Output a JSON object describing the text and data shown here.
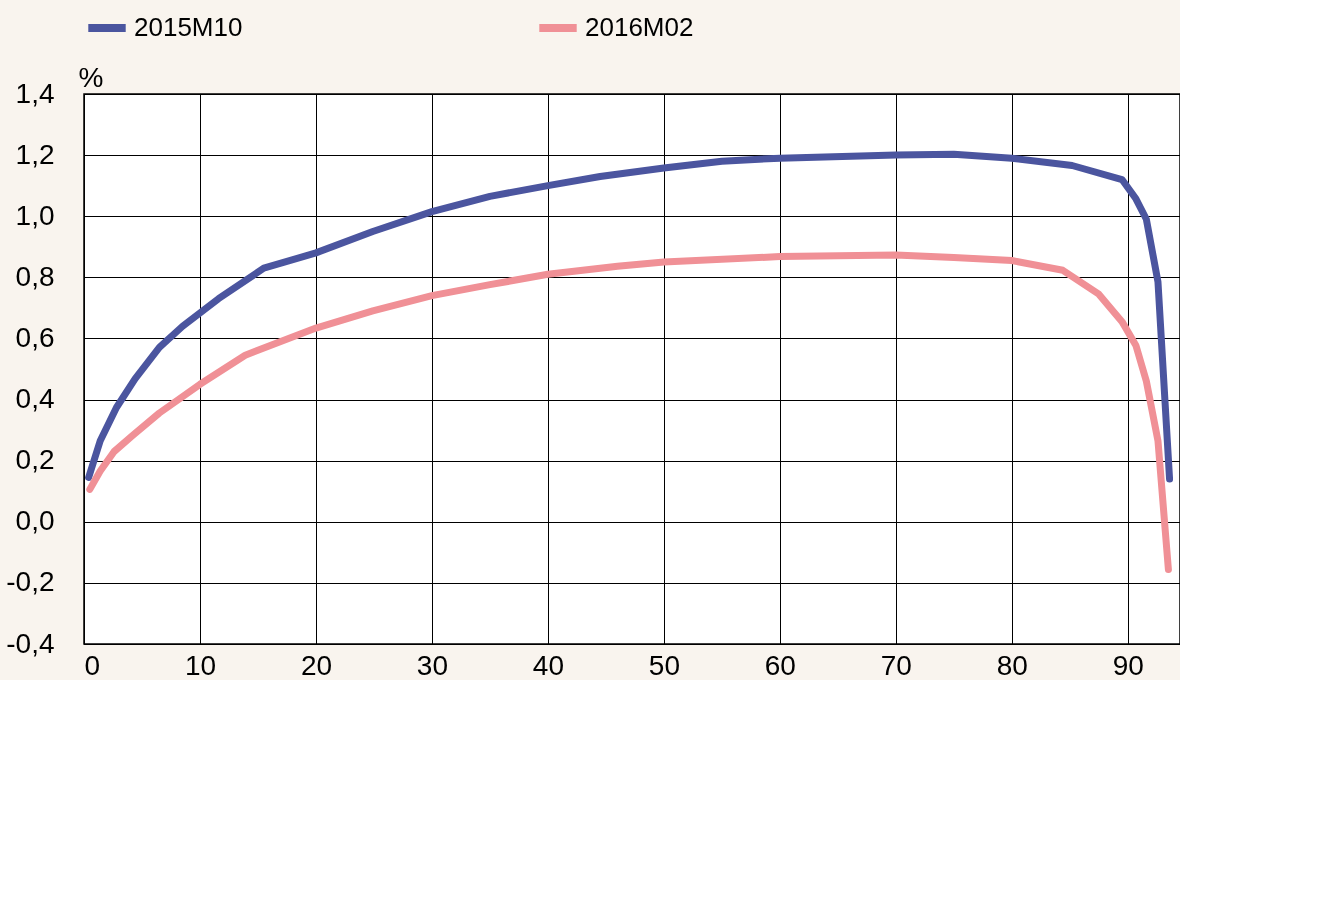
{
  "chart_data": {
    "type": "line",
    "ylabel": "%",
    "legend": "top",
    "grid": true,
    "marker": "none",
    "line_style": "solid",
    "xlim": [
      0,
      94.5
    ],
    "xticks": [
      0,
      10,
      20,
      30,
      40,
      50,
      60,
      70,
      80,
      90
    ],
    "ylim": [
      -0.4,
      1.4
    ],
    "yticks": [
      {
        "value": -0.4,
        "label": "-0,4"
      },
      {
        "value": -0.2,
        "label": "-0,2"
      },
      {
        "value": 0,
        "label": "0,0"
      },
      {
        "value": 0.2,
        "label": "0,2"
      },
      {
        "value": 0.4,
        "label": "0,4"
      },
      {
        "value": 0.6,
        "label": "0,6"
      },
      {
        "value": 0.8,
        "label": "0,8"
      },
      {
        "value": 1.0,
        "label": "1,0"
      },
      {
        "value": 1.2,
        "label": "1,2"
      },
      {
        "value": 1.4,
        "label": "1,4"
      }
    ],
    "series": [
      {
        "name": "2015M10",
        "color": "#4b559f",
        "x": [
          0.4,
          1.4,
          2.8,
          4.4,
          6.5,
          8.5,
          11.6,
          15.5,
          20,
          24.9,
          30,
          35,
          40,
          44.5,
          50,
          55,
          60,
          70,
          75,
          80,
          85.2,
          89.5,
          90.7,
          91.6,
          92.6,
          93.6
        ],
        "values": [
          0.145,
          0.265,
          0.374,
          0.468,
          0.571,
          0.64,
          0.73,
          0.83,
          0.88,
          0.95,
          1.015,
          1.065,
          1.1,
          1.13,
          1.158,
          1.18,
          1.19,
          1.2,
          1.203,
          1.19,
          1.166,
          1.12,
          1.057,
          0.99,
          0.785,
          0.14
        ]
      },
      {
        "name": "2016M02",
        "color": "#f09096",
        "x": [
          0.5,
          1.4,
          2.6,
          4.2,
          6.5,
          10,
          13.9,
          20,
          24.9,
          30,
          35,
          40,
          46,
          50,
          60,
          70,
          75,
          80,
          84.4,
          87.5,
          89.5,
          90.7,
          91.6,
          92.6,
          93.5
        ],
        "values": [
          0.106,
          0.166,
          0.23,
          0.283,
          0.356,
          0.45,
          0.545,
          0.634,
          0.69,
          0.74,
          0.776,
          0.81,
          0.836,
          0.85,
          0.868,
          0.873,
          0.865,
          0.855,
          0.823,
          0.745,
          0.655,
          0.577,
          0.46,
          0.265,
          -0.156
        ]
      }
    ]
  }
}
